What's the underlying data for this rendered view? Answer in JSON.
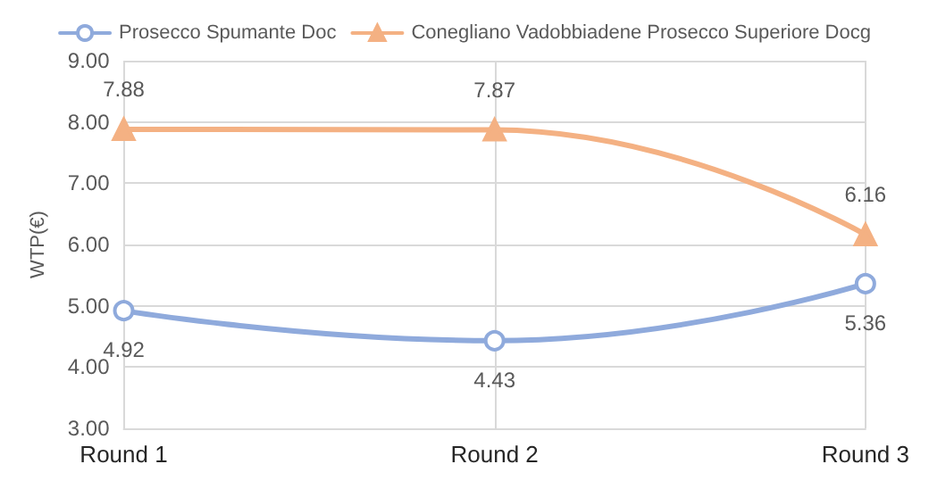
{
  "chart_data": {
    "type": "line",
    "ylabel": "WTP(€)",
    "categories": [
      "Round 1",
      "Round 2",
      "Round 3"
    ],
    "series": [
      {
        "name": "Prosecco Spumante Doc",
        "color": "#8faadc",
        "values": [
          4.92,
          4.43,
          5.36
        ],
        "marker": "circle"
      },
      {
        "name": "Conegliano Vadobbiadene Prosecco Superiore Docg",
        "color": "#f4b183",
        "values": [
          7.88,
          7.87,
          6.16
        ],
        "marker": "triangle"
      }
    ],
    "ylim": [
      3,
      9
    ],
    "yticks": [
      {
        "value": 3,
        "label": "3.00"
      },
      {
        "value": 4,
        "label": "4.00"
      },
      {
        "value": 5,
        "label": "5.00"
      },
      {
        "value": 6,
        "label": "6.00"
      },
      {
        "value": 7,
        "label": "7.00"
      },
      {
        "value": 8,
        "label": "8.00"
      },
      {
        "value": 9,
        "label": "9.00"
      }
    ],
    "grid": true,
    "legend": "top",
    "data_labels": true,
    "line_style": "solid"
  }
}
